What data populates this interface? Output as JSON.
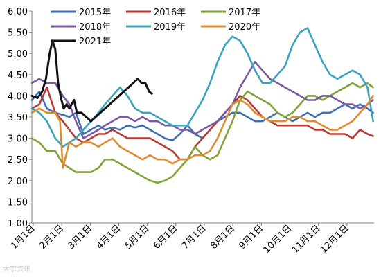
{
  "chart_data": {
    "type": "line",
    "y_range": [
      1.0,
      6.0
    ],
    "y_ticks": [
      "1.00",
      "1.50",
      "2.00",
      "2.50",
      "3.00",
      "3.50",
      "4.00",
      "4.50",
      "5.00",
      "5.50",
      "6.00"
    ],
    "x_ticks": [
      "1月1日",
      "2月1日",
      "3月1日",
      "4月1日",
      "5月1日",
      "6月1日",
      "7月1日",
      "8月1日",
      "9月1日",
      "10月1日",
      "11月1日",
      "12月1日"
    ],
    "grid": false,
    "legend_position": "top",
    "watermark": "大宗资讯",
    "series": [
      {
        "name": "2015年",
        "color": "#3c6fb2",
        "points": [
          [
            0,
            3.9
          ],
          [
            8,
            4.1
          ],
          [
            16,
            3.7
          ],
          [
            25,
            3.6
          ],
          [
            33,
            3.55
          ],
          [
            40,
            3.5
          ],
          [
            47,
            3.6
          ],
          [
            55,
            3.1
          ],
          [
            63,
            3.2
          ],
          [
            71,
            3.3
          ],
          [
            78,
            3.2
          ],
          [
            86,
            3.25
          ],
          [
            94,
            3.2
          ],
          [
            102,
            3.3
          ],
          [
            110,
            3.25
          ],
          [
            118,
            3.3
          ],
          [
            126,
            3.2
          ],
          [
            134,
            3.1
          ],
          [
            142,
            3.0
          ],
          [
            150,
            2.95
          ],
          [
            158,
            3.1
          ],
          [
            166,
            3.3
          ],
          [
            174,
            3.1
          ],
          [
            182,
            3.0
          ],
          [
            190,
            3.2
          ],
          [
            198,
            3.4
          ],
          [
            206,
            3.5
          ],
          [
            214,
            3.6
          ],
          [
            222,
            3.6
          ],
          [
            230,
            3.5
          ],
          [
            238,
            3.4
          ],
          [
            246,
            3.4
          ],
          [
            254,
            3.5
          ],
          [
            262,
            3.6
          ],
          [
            270,
            3.5
          ],
          [
            278,
            3.4
          ],
          [
            286,
            3.5
          ],
          [
            294,
            3.6
          ],
          [
            302,
            3.5
          ],
          [
            310,
            3.6
          ],
          [
            318,
            3.6
          ],
          [
            326,
            3.7
          ],
          [
            334,
            3.8
          ],
          [
            342,
            3.7
          ],
          [
            350,
            3.8
          ],
          [
            358,
            3.7
          ],
          [
            364,
            3.6
          ]
        ]
      },
      {
        "name": "2016年",
        "color": "#b83a35",
        "points": [
          [
            0,
            3.7
          ],
          [
            8,
            3.8
          ],
          [
            16,
            4.2
          ],
          [
            25,
            3.6
          ],
          [
            33,
            3.4
          ],
          [
            40,
            3.2
          ],
          [
            47,
            3.0
          ],
          [
            55,
            2.9
          ],
          [
            63,
            3.0
          ],
          [
            71,
            3.1
          ],
          [
            78,
            3.1
          ],
          [
            86,
            3.2
          ],
          [
            94,
            3.1
          ],
          [
            102,
            3.0
          ],
          [
            110,
            3.0
          ],
          [
            118,
            3.0
          ],
          [
            126,
            3.0
          ],
          [
            134,
            2.9
          ],
          [
            142,
            2.8
          ],
          [
            150,
            2.7
          ],
          [
            158,
            2.5
          ],
          [
            166,
            2.5
          ],
          [
            174,
            2.8
          ],
          [
            182,
            3.0
          ],
          [
            190,
            3.2
          ],
          [
            198,
            3.4
          ],
          [
            206,
            3.6
          ],
          [
            214,
            3.8
          ],
          [
            222,
            4.0
          ],
          [
            230,
            3.9
          ],
          [
            238,
            3.7
          ],
          [
            246,
            3.5
          ],
          [
            254,
            3.4
          ],
          [
            262,
            3.3
          ],
          [
            270,
            3.3
          ],
          [
            278,
            3.3
          ],
          [
            286,
            3.3
          ],
          [
            294,
            3.3
          ],
          [
            302,
            3.2
          ],
          [
            310,
            3.2
          ],
          [
            318,
            3.1
          ],
          [
            326,
            3.1
          ],
          [
            334,
            3.1
          ],
          [
            342,
            3.0
          ],
          [
            350,
            3.2
          ],
          [
            358,
            3.1
          ],
          [
            364,
            3.05
          ]
        ]
      },
      {
        "name": "2017年",
        "color": "#7fa336",
        "points": [
          [
            0,
            3.0
          ],
          [
            8,
            2.9
          ],
          [
            16,
            2.7
          ],
          [
            25,
            2.7
          ],
          [
            33,
            2.4
          ],
          [
            40,
            2.3
          ],
          [
            47,
            2.2
          ],
          [
            55,
            2.2
          ],
          [
            63,
            2.2
          ],
          [
            71,
            2.3
          ],
          [
            78,
            2.5
          ],
          [
            86,
            2.5
          ],
          [
            94,
            2.4
          ],
          [
            102,
            2.3
          ],
          [
            110,
            2.2
          ],
          [
            118,
            2.1
          ],
          [
            126,
            2.0
          ],
          [
            134,
            1.95
          ],
          [
            142,
            2.0
          ],
          [
            150,
            2.1
          ],
          [
            158,
            2.3
          ],
          [
            166,
            2.5
          ],
          [
            174,
            2.8
          ],
          [
            182,
            2.6
          ],
          [
            190,
            2.5
          ],
          [
            198,
            2.6
          ],
          [
            206,
            3.0
          ],
          [
            214,
            3.4
          ],
          [
            222,
            3.9
          ],
          [
            230,
            4.1
          ],
          [
            238,
            4.0
          ],
          [
            246,
            3.9
          ],
          [
            254,
            3.8
          ],
          [
            262,
            3.6
          ],
          [
            270,
            3.5
          ],
          [
            278,
            3.6
          ],
          [
            286,
            3.8
          ],
          [
            294,
            4.0
          ],
          [
            302,
            4.0
          ],
          [
            310,
            3.9
          ],
          [
            318,
            4.0
          ],
          [
            326,
            4.1
          ],
          [
            334,
            4.2
          ],
          [
            342,
            4.3
          ],
          [
            350,
            4.2
          ],
          [
            358,
            4.3
          ],
          [
            364,
            4.2
          ]
        ]
      },
      {
        "name": "2018年",
        "color": "#7b58a0",
        "points": [
          [
            0,
            4.3
          ],
          [
            8,
            4.4
          ],
          [
            16,
            4.3
          ],
          [
            25,
            4.3
          ],
          [
            33,
            4.0
          ],
          [
            40,
            3.8
          ],
          [
            47,
            3.4
          ],
          [
            55,
            3.0
          ],
          [
            63,
            3.1
          ],
          [
            71,
            3.2
          ],
          [
            78,
            3.3
          ],
          [
            86,
            3.4
          ],
          [
            94,
            3.5
          ],
          [
            102,
            3.5
          ],
          [
            110,
            3.4
          ],
          [
            118,
            3.5
          ],
          [
            126,
            3.4
          ],
          [
            134,
            3.4
          ],
          [
            142,
            3.3
          ],
          [
            150,
            3.3
          ],
          [
            158,
            3.2
          ],
          [
            166,
            3.2
          ],
          [
            174,
            3.1
          ],
          [
            182,
            3.2
          ],
          [
            190,
            3.3
          ],
          [
            198,
            3.4
          ],
          [
            206,
            3.6
          ],
          [
            214,
            3.8
          ],
          [
            222,
            4.2
          ],
          [
            230,
            4.5
          ],
          [
            238,
            4.8
          ],
          [
            246,
            4.6
          ],
          [
            254,
            4.4
          ],
          [
            262,
            4.3
          ],
          [
            270,
            4.2
          ],
          [
            278,
            4.1
          ],
          [
            286,
            4.0
          ],
          [
            294,
            3.9
          ],
          [
            302,
            3.9
          ],
          [
            310,
            4.0
          ],
          [
            318,
            4.0
          ],
          [
            326,
            3.9
          ],
          [
            334,
            3.8
          ],
          [
            342,
            3.8
          ],
          [
            350,
            3.7
          ],
          [
            358,
            3.8
          ],
          [
            364,
            3.9
          ]
        ]
      },
      {
        "name": "2019年",
        "color": "#3aa3bb",
        "points": [
          [
            0,
            3.7
          ],
          [
            8,
            3.6
          ],
          [
            16,
            3.4
          ],
          [
            25,
            3.0
          ],
          [
            33,
            2.8
          ],
          [
            40,
            2.9
          ],
          [
            47,
            3.0
          ],
          [
            55,
            3.2
          ],
          [
            63,
            3.4
          ],
          [
            71,
            3.6
          ],
          [
            78,
            3.8
          ],
          [
            86,
            4.0
          ],
          [
            94,
            4.2
          ],
          [
            102,
            4.0
          ],
          [
            110,
            3.7
          ],
          [
            118,
            3.6
          ],
          [
            126,
            3.6
          ],
          [
            134,
            3.5
          ],
          [
            142,
            3.4
          ],
          [
            150,
            3.3
          ],
          [
            158,
            3.3
          ],
          [
            166,
            3.3
          ],
          [
            174,
            3.6
          ],
          [
            182,
            3.9
          ],
          [
            190,
            4.3
          ],
          [
            198,
            4.8
          ],
          [
            206,
            5.2
          ],
          [
            214,
            5.4
          ],
          [
            222,
            5.3
          ],
          [
            230,
            5.0
          ],
          [
            238,
            4.6
          ],
          [
            246,
            4.3
          ],
          [
            254,
            4.3
          ],
          [
            262,
            4.5
          ],
          [
            270,
            4.7
          ],
          [
            278,
            5.2
          ],
          [
            286,
            5.5
          ],
          [
            294,
            5.6
          ],
          [
            302,
            5.2
          ],
          [
            310,
            4.8
          ],
          [
            318,
            4.5
          ],
          [
            326,
            4.4
          ],
          [
            334,
            4.5
          ],
          [
            342,
            4.6
          ],
          [
            350,
            4.5
          ],
          [
            358,
            4.2
          ],
          [
            364,
            3.4
          ]
        ]
      },
      {
        "name": "2020年",
        "color": "#e08a30",
        "points": [
          [
            0,
            3.6
          ],
          [
            8,
            3.7
          ],
          [
            16,
            3.6
          ],
          [
            25,
            3.6
          ],
          [
            30,
            3.4
          ],
          [
            33,
            2.3
          ],
          [
            40,
            2.9
          ],
          [
            47,
            2.8
          ],
          [
            55,
            2.9
          ],
          [
            63,
            2.9
          ],
          [
            71,
            2.8
          ],
          [
            78,
            2.9
          ],
          [
            86,
            3.0
          ],
          [
            94,
            2.8
          ],
          [
            102,
            2.7
          ],
          [
            110,
            2.6
          ],
          [
            118,
            2.5
          ],
          [
            126,
            2.6
          ],
          [
            134,
            2.5
          ],
          [
            142,
            2.5
          ],
          [
            150,
            2.4
          ],
          [
            158,
            2.5
          ],
          [
            166,
            2.5
          ],
          [
            174,
            2.6
          ],
          [
            182,
            2.6
          ],
          [
            190,
            2.7
          ],
          [
            198,
            3.0
          ],
          [
            206,
            3.4
          ],
          [
            214,
            3.8
          ],
          [
            222,
            3.9
          ],
          [
            230,
            3.8
          ],
          [
            238,
            3.6
          ],
          [
            246,
            3.5
          ],
          [
            254,
            3.4
          ],
          [
            262,
            3.4
          ],
          [
            270,
            3.4
          ],
          [
            278,
            3.5
          ],
          [
            286,
            3.5
          ],
          [
            294,
            3.4
          ],
          [
            302,
            3.4
          ],
          [
            310,
            3.3
          ],
          [
            318,
            3.2
          ],
          [
            326,
            3.2
          ],
          [
            334,
            3.3
          ],
          [
            342,
            3.4
          ],
          [
            350,
            3.6
          ],
          [
            358,
            3.8
          ],
          [
            364,
            4.0
          ]
        ]
      },
      {
        "name": "2021年",
        "color": "#111111",
        "points": [
          [
            0,
            4.0
          ],
          [
            6,
            3.95
          ],
          [
            11,
            4.1
          ],
          [
            15,
            4.4
          ],
          [
            19,
            5.0
          ],
          [
            22,
            5.3
          ],
          [
            25,
            5.1
          ],
          [
            28,
            4.3
          ],
          [
            31,
            3.95
          ],
          [
            34,
            3.7
          ],
          [
            37,
            3.8
          ],
          [
            40,
            3.7
          ],
          [
            45,
            3.9
          ],
          [
            48,
            3.6
          ],
          [
            53,
            3.6
          ],
          [
            58,
            3.5
          ],
          [
            63,
            3.4
          ],
          [
            68,
            3.5
          ],
          [
            73,
            3.6
          ],
          [
            78,
            3.7
          ],
          [
            83,
            3.8
          ],
          [
            88,
            3.9
          ],
          [
            93,
            4.0
          ],
          [
            98,
            4.1
          ],
          [
            103,
            4.2
          ],
          [
            108,
            4.3
          ],
          [
            113,
            4.4
          ],
          [
            117,
            4.3
          ],
          [
            121,
            4.3
          ],
          [
            125,
            4.1
          ],
          [
            128,
            4.05
          ]
        ]
      }
    ]
  }
}
